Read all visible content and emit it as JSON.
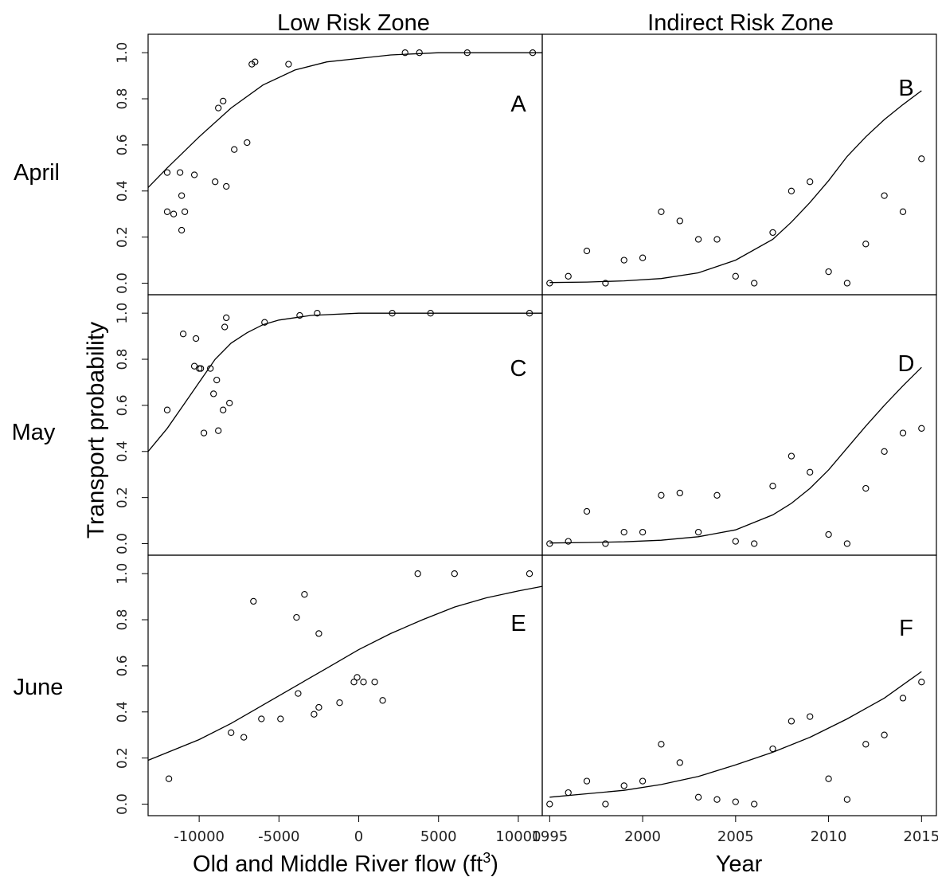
{
  "figure": {
    "col_titles": [
      "Low Risk Zone",
      "Indirect Risk Zone"
    ],
    "row_titles": [
      "April",
      "May",
      "June"
    ],
    "ylabel": "Transport probability",
    "xlabel_left": "Old and Middle River flow (ft",
    "xlabel_left_sup": "3",
    "xlabel_left_end": ")",
    "xlabel_right": "Year"
  },
  "chart_data": [
    {
      "type": "scatter",
      "panel_label": "A",
      "row": "April",
      "column": "Low Risk Zone",
      "xlim": [
        -13200,
        11500
      ],
      "ylim": [
        -0.05,
        1.08
      ],
      "xticks": [
        -10000,
        -5000,
        0,
        5000,
        10000
      ],
      "yticks": [
        0.0,
        0.2,
        0.4,
        0.6,
        0.8,
        1.0
      ],
      "points": [
        [
          -12000,
          0.48
        ],
        [
          -12000,
          0.31
        ],
        [
          -11600,
          0.3
        ],
        [
          -11200,
          0.48
        ],
        [
          -11100,
          0.38
        ],
        [
          -11100,
          0.23
        ],
        [
          -10900,
          0.31
        ],
        [
          -10300,
          0.47
        ],
        [
          -9000,
          0.44
        ],
        [
          -8800,
          0.76
        ],
        [
          -8500,
          0.79
        ],
        [
          -8300,
          0.42
        ],
        [
          -7800,
          0.58
        ],
        [
          -7000,
          0.61
        ],
        [
          -6700,
          0.95
        ],
        [
          -6500,
          0.96
        ],
        [
          -4400,
          0.95
        ],
        [
          2900,
          1.0
        ],
        [
          3800,
          1.0
        ],
        [
          6800,
          1.0
        ],
        [
          10900,
          1.0
        ]
      ],
      "curve": [
        [
          -13200,
          0.415
        ],
        [
          -12000,
          0.5
        ],
        [
          -10000,
          0.635
        ],
        [
          -8000,
          0.76
        ],
        [
          -6000,
          0.86
        ],
        [
          -4000,
          0.925
        ],
        [
          -2000,
          0.96
        ],
        [
          0,
          0.975
        ],
        [
          2000,
          0.99
        ],
        [
          5000,
          1.0
        ],
        [
          11500,
          1.0
        ]
      ]
    },
    {
      "type": "scatter",
      "panel_label": "B",
      "row": "April",
      "column": "Indirect Risk Zone",
      "xlim": [
        1994.6,
        2015.8
      ],
      "ylim": [
        -0.05,
        1.08
      ],
      "xticks": [
        1995,
        2000,
        2005,
        2010,
        2015
      ],
      "yticks": [
        0.0,
        0.2,
        0.4,
        0.6,
        0.8,
        1.0
      ],
      "points": [
        [
          1995,
          0.0
        ],
        [
          1996,
          0.03
        ],
        [
          1997,
          0.14
        ],
        [
          1998,
          0.0
        ],
        [
          1999,
          0.1
        ],
        [
          2000,
          0.11
        ],
        [
          2001,
          0.31
        ],
        [
          2002,
          0.27
        ],
        [
          2003,
          0.19
        ],
        [
          2004,
          0.19
        ],
        [
          2005,
          0.03
        ],
        [
          2006,
          0.0
        ],
        [
          2007,
          0.22
        ],
        [
          2008,
          0.4
        ],
        [
          2009,
          0.44
        ],
        [
          2010,
          0.05
        ],
        [
          2011,
          0.0
        ],
        [
          2012,
          0.17
        ],
        [
          2013,
          0.38
        ],
        [
          2014,
          0.31
        ],
        [
          2015,
          0.54
        ]
      ],
      "curve": [
        [
          1995,
          0.003
        ],
        [
          1997,
          0.005
        ],
        [
          1999,
          0.01
        ],
        [
          2001,
          0.02
        ],
        [
          2003,
          0.045
        ],
        [
          2005,
          0.1
        ],
        [
          2007,
          0.19
        ],
        [
          2008,
          0.265
        ],
        [
          2009,
          0.35
        ],
        [
          2010,
          0.445
        ],
        [
          2011,
          0.55
        ],
        [
          2012,
          0.635
        ],
        [
          2013,
          0.71
        ],
        [
          2014,
          0.775
        ],
        [
          2015,
          0.835
        ]
      ]
    },
    {
      "type": "scatter",
      "panel_label": "C",
      "row": "May",
      "column": "Low Risk Zone",
      "xlim": [
        -13200,
        11500
      ],
      "ylim": [
        -0.05,
        1.08
      ],
      "xticks": [
        -10000,
        -5000,
        0,
        5000,
        10000
      ],
      "yticks": [
        0.0,
        0.2,
        0.4,
        0.6,
        0.8,
        1.0
      ],
      "points": [
        [
          -12000,
          0.58
        ],
        [
          -11000,
          0.91
        ],
        [
          -10300,
          0.77
        ],
        [
          -10200,
          0.89
        ],
        [
          -10000,
          0.76
        ],
        [
          -9900,
          0.76
        ],
        [
          -9700,
          0.48
        ],
        [
          -9300,
          0.76
        ],
        [
          -9100,
          0.65
        ],
        [
          -8900,
          0.71
        ],
        [
          -8800,
          0.49
        ],
        [
          -8500,
          0.58
        ],
        [
          -8400,
          0.94
        ],
        [
          -8300,
          0.98
        ],
        [
          -8100,
          0.61
        ],
        [
          -5900,
          0.96
        ],
        [
          -3700,
          0.99
        ],
        [
          -2600,
          1.0
        ],
        [
          2100,
          1.0
        ],
        [
          4500,
          1.0
        ],
        [
          10700,
          1.0
        ]
      ],
      "curve": [
        [
          -13200,
          0.4
        ],
        [
          -12000,
          0.5
        ],
        [
          -11000,
          0.6
        ],
        [
          -10000,
          0.7
        ],
        [
          -9000,
          0.8
        ],
        [
          -8000,
          0.87
        ],
        [
          -7000,
          0.915
        ],
        [
          -6000,
          0.95
        ],
        [
          -5000,
          0.97
        ],
        [
          -3000,
          0.99
        ],
        [
          0,
          1.0
        ],
        [
          11500,
          1.0
        ]
      ]
    },
    {
      "type": "scatter",
      "panel_label": "D",
      "row": "May",
      "column": "Indirect Risk Zone",
      "xlim": [
        1994.6,
        2015.8
      ],
      "ylim": [
        -0.05,
        1.08
      ],
      "xticks": [
        1995,
        2000,
        2005,
        2010,
        2015
      ],
      "yticks": [
        0.0,
        0.2,
        0.4,
        0.6,
        0.8,
        1.0
      ],
      "points": [
        [
          1995,
          0.0
        ],
        [
          1996,
          0.01
        ],
        [
          1997,
          0.14
        ],
        [
          1998,
          0.0
        ],
        [
          1999,
          0.05
        ],
        [
          2000,
          0.05
        ],
        [
          2001,
          0.21
        ],
        [
          2002,
          0.22
        ],
        [
          2003,
          0.05
        ],
        [
          2004,
          0.21
        ],
        [
          2005,
          0.01
        ],
        [
          2006,
          0.0
        ],
        [
          2007,
          0.25
        ],
        [
          2008,
          0.38
        ],
        [
          2009,
          0.31
        ],
        [
          2010,
          0.04
        ],
        [
          2011,
          0.0
        ],
        [
          2012,
          0.24
        ],
        [
          2013,
          0.4
        ],
        [
          2014,
          0.48
        ],
        [
          2015,
          0.5
        ]
      ],
      "curve": [
        [
          1995,
          0.003
        ],
        [
          1997,
          0.005
        ],
        [
          1999,
          0.008
        ],
        [
          2001,
          0.015
        ],
        [
          2003,
          0.03
        ],
        [
          2005,
          0.06
        ],
        [
          2007,
          0.125
        ],
        [
          2008,
          0.175
        ],
        [
          2009,
          0.24
        ],
        [
          2010,
          0.32
        ],
        [
          2011,
          0.415
        ],
        [
          2012,
          0.51
        ],
        [
          2013,
          0.6
        ],
        [
          2014,
          0.685
        ],
        [
          2015,
          0.765
        ]
      ]
    },
    {
      "type": "scatter",
      "panel_label": "E",
      "row": "June",
      "column": "Low Risk Zone",
      "xlim": [
        -13200,
        11500
      ],
      "ylim": [
        -0.05,
        1.08
      ],
      "xticks": [
        -10000,
        -5000,
        0,
        5000,
        10000
      ],
      "yticks": [
        0.0,
        0.2,
        0.4,
        0.6,
        0.8,
        1.0
      ],
      "points": [
        [
          -11900,
          0.11
        ],
        [
          -8000,
          0.31
        ],
        [
          -7200,
          0.29
        ],
        [
          -6600,
          0.88
        ],
        [
          -6100,
          0.37
        ],
        [
          -4900,
          0.37
        ],
        [
          -3900,
          0.81
        ],
        [
          -3800,
          0.48
        ],
        [
          -3400,
          0.91
        ],
        [
          -2800,
          0.39
        ],
        [
          -2500,
          0.42
        ],
        [
          -2500,
          0.74
        ],
        [
          -1200,
          0.44
        ],
        [
          -300,
          0.53
        ],
        [
          -100,
          0.55
        ],
        [
          300,
          0.53
        ],
        [
          1000,
          0.53
        ],
        [
          1500,
          0.45
        ],
        [
          3700,
          1.0
        ],
        [
          6000,
          1.0
        ],
        [
          10700,
          1.0
        ]
      ],
      "curve": [
        [
          -13200,
          0.19
        ],
        [
          -10000,
          0.28
        ],
        [
          -8000,
          0.35
        ],
        [
          -6000,
          0.43
        ],
        [
          -4000,
          0.51
        ],
        [
          -2000,
          0.59
        ],
        [
          0,
          0.67
        ],
        [
          2000,
          0.74
        ],
        [
          4000,
          0.8
        ],
        [
          6000,
          0.855
        ],
        [
          8000,
          0.895
        ],
        [
          10000,
          0.925
        ],
        [
          11500,
          0.945
        ]
      ]
    },
    {
      "type": "scatter",
      "panel_label": "F",
      "row": "June",
      "column": "Indirect Risk Zone",
      "xlim": [
        1994.6,
        2015.8
      ],
      "ylim": [
        -0.05,
        1.08
      ],
      "xticks": [
        1995,
        2000,
        2005,
        2010,
        2015
      ],
      "yticks": [
        0.0,
        0.2,
        0.4,
        0.6,
        0.8,
        1.0
      ],
      "points": [
        [
          1995,
          0.0
        ],
        [
          1996,
          0.05
        ],
        [
          1997,
          0.1
        ],
        [
          1998,
          0.0
        ],
        [
          1999,
          0.08
        ],
        [
          2000,
          0.1
        ],
        [
          2001,
          0.26
        ],
        [
          2002,
          0.18
        ],
        [
          2003,
          0.03
        ],
        [
          2004,
          0.02
        ],
        [
          2005,
          0.01
        ],
        [
          2006,
          0.0
        ],
        [
          2007,
          0.24
        ],
        [
          2008,
          0.36
        ],
        [
          2009,
          0.38
        ],
        [
          2010,
          0.11
        ],
        [
          2011,
          0.02
        ],
        [
          2012,
          0.26
        ],
        [
          2013,
          0.3
        ],
        [
          2014,
          0.46
        ],
        [
          2015,
          0.53
        ]
      ],
      "curve": [
        [
          1995,
          0.03
        ],
        [
          1997,
          0.045
        ],
        [
          1999,
          0.06
        ],
        [
          2001,
          0.085
        ],
        [
          2003,
          0.12
        ],
        [
          2005,
          0.17
        ],
        [
          2007,
          0.225
        ],
        [
          2009,
          0.29
        ],
        [
          2011,
          0.37
        ],
        [
          2013,
          0.46
        ],
        [
          2015,
          0.575
        ]
      ]
    }
  ]
}
